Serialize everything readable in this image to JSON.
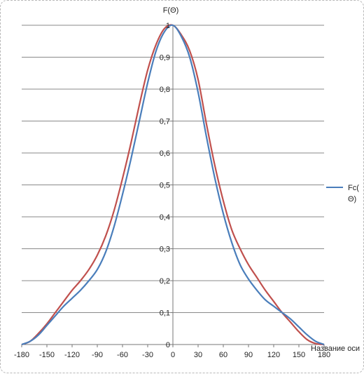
{
  "chart_data": {
    "type": "line",
    "title": "",
    "ylabel": "F(Θ)",
    "xlabel": "Название оси",
    "xlim": [
      -180,
      180
    ],
    "ylim": [
      0,
      1
    ],
    "x_ticks": [
      -180,
      -150,
      -120,
      -90,
      -60,
      -30,
      0,
      30,
      60,
      90,
      120,
      150,
      180
    ],
    "y_ticks": [
      {
        "value": 0,
        "label": "0"
      },
      {
        "value": 0.1,
        "label": "0,1"
      },
      {
        "value": 0.2,
        "label": "0,2"
      },
      {
        "value": 0.3,
        "label": "0,3"
      },
      {
        "value": 0.4,
        "label": "0,4"
      },
      {
        "value": 0.5,
        "label": "0,5"
      },
      {
        "value": 0.6,
        "label": "0,6"
      },
      {
        "value": 0.7,
        "label": "0,7"
      },
      {
        "value": 0.8,
        "label": "0,8"
      },
      {
        "value": 0.9,
        "label": "0,9"
      },
      {
        "value": 1,
        "label": "1"
      }
    ],
    "grid": "horizontal",
    "legend_position": "right",
    "series": [
      {
        "name": "Fc(Θ)",
        "color": "#4a7ebb",
        "x": [
          -180,
          -170,
          -160,
          -150,
          -140,
          -130,
          -120,
          -110,
          -100,
          -90,
          -80,
          -70,
          -60,
          -50,
          -40,
          -30,
          -20,
          -10,
          0,
          10,
          20,
          30,
          40,
          50,
          60,
          70,
          80,
          90,
          100,
          110,
          120,
          130,
          140,
          150,
          160,
          170,
          180
        ],
        "values": [
          0,
          0.01,
          0.03,
          0.06,
          0.09,
          0.12,
          0.145,
          0.17,
          0.2,
          0.235,
          0.29,
          0.37,
          0.47,
          0.58,
          0.7,
          0.82,
          0.92,
          0.98,
          1,
          0.965,
          0.9,
          0.79,
          0.65,
          0.52,
          0.41,
          0.32,
          0.25,
          0.205,
          0.17,
          0.14,
          0.12,
          0.1,
          0.08,
          0.055,
          0.03,
          0.01,
          0
        ]
      },
      {
        "name": "",
        "color": "#c0504d",
        "x": [
          -180,
          -170,
          -160,
          -150,
          -140,
          -130,
          -120,
          -110,
          -100,
          -90,
          -80,
          -70,
          -60,
          -50,
          -40,
          -30,
          -20,
          -10,
          0,
          10,
          20,
          30,
          40,
          50,
          60,
          70,
          80,
          90,
          100,
          110,
          120,
          130,
          140,
          150,
          160,
          170,
          180
        ],
        "values": [
          0,
          0.01,
          0.035,
          0.065,
          0.1,
          0.135,
          0.17,
          0.2,
          0.235,
          0.28,
          0.34,
          0.42,
          0.52,
          0.63,
          0.75,
          0.86,
          0.94,
          0.99,
          1,
          0.97,
          0.92,
          0.83,
          0.69,
          0.56,
          0.45,
          0.36,
          0.3,
          0.25,
          0.21,
          0.17,
          0.135,
          0.1,
          0.07,
          0.04,
          0.015,
          0.003,
          0
        ]
      }
    ]
  }
}
